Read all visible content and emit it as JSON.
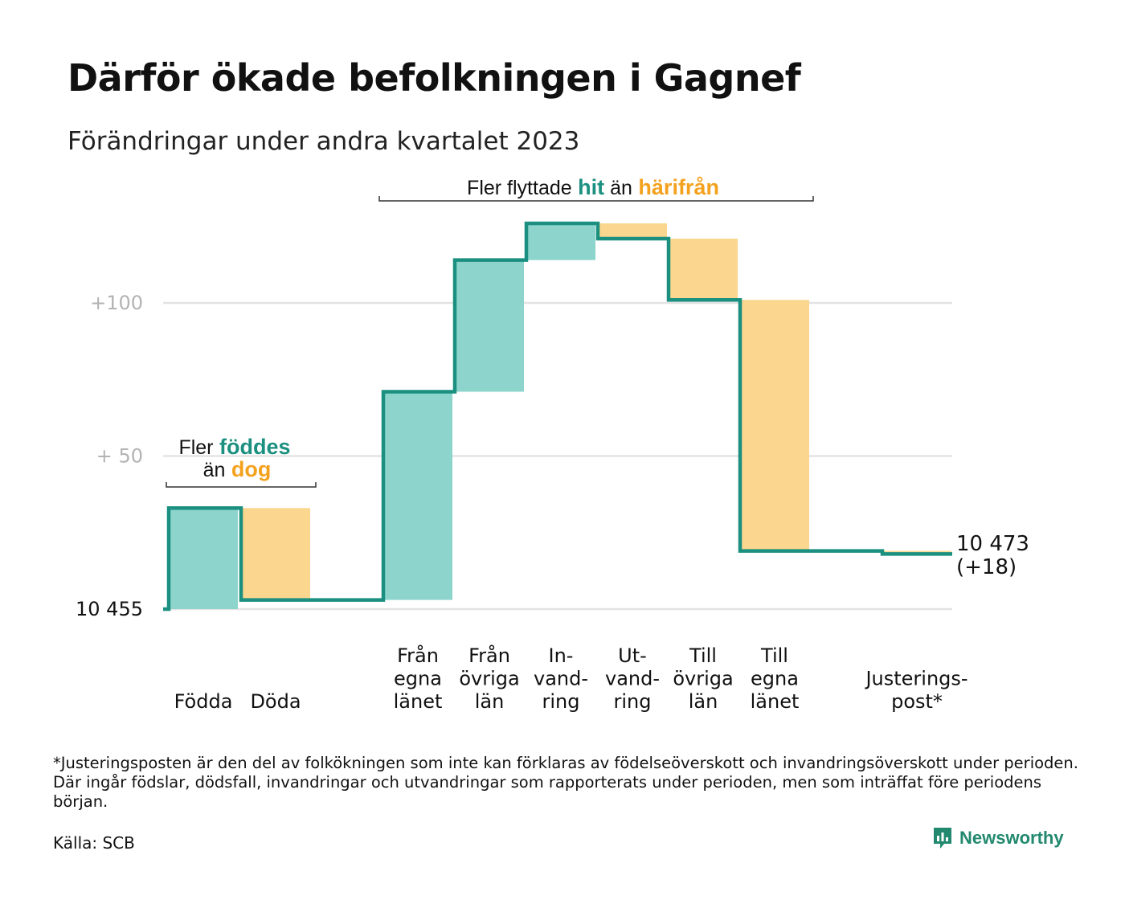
{
  "header": {
    "title": "Därför ökade befolkningen i Gagnef",
    "subtitle": "Förändringar under andra kvartalet 2023"
  },
  "chart_data": {
    "type": "bar",
    "subtype": "waterfall",
    "start_value": 10455,
    "end_value": 10473,
    "end_label": [
      "10 473",
      "(+18)"
    ],
    "y_ticks": [
      {
        "value": 10455,
        "label": "10  455"
      },
      {
        "value": 10505,
        "label": "+  50"
      },
      {
        "value": 10555,
        "label": "+100"
      }
    ],
    "ylim": [
      10455,
      10583
    ],
    "grid": true,
    "steps": [
      {
        "category": "Födda",
        "label_lines": [
          "Födda"
        ],
        "delta": 33,
        "kind": "in"
      },
      {
        "category": "Döda",
        "label_lines": [
          "Döda"
        ],
        "delta": -30,
        "kind": "out"
      },
      {
        "category": "Från egna länet",
        "label_lines": [
          "Från",
          "egna",
          "länet"
        ],
        "delta": 68,
        "kind": "in"
      },
      {
        "category": "Från övriga län",
        "label_lines": [
          "Från",
          "övriga",
          "län"
        ],
        "delta": 43,
        "kind": "in"
      },
      {
        "category": "Invandring",
        "label_lines": [
          "In-",
          "vand-",
          "ring"
        ],
        "delta": 12,
        "kind": "in"
      },
      {
        "category": "Utvandring",
        "label_lines": [
          "Ut-",
          "vand-",
          "ring"
        ],
        "delta": -5,
        "kind": "out"
      },
      {
        "category": "Till övriga län",
        "label_lines": [
          "Till",
          "övriga",
          "län"
        ],
        "delta": -20,
        "kind": "out"
      },
      {
        "category": "Till egna länet",
        "label_lines": [
          "Till",
          "egna",
          "länet"
        ],
        "delta": -82,
        "kind": "out"
      },
      {
        "category": "Justeringspost*",
        "label_lines": [
          "Justerings-",
          "post*"
        ],
        "delta": -1,
        "kind": "out"
      }
    ],
    "annotations": {
      "births": {
        "prefix": "Fler",
        "in_word": "föddes",
        "middle": "än",
        "out_word": "dog"
      },
      "migration": {
        "prefix": "Fler flyttade",
        "in_word": "hit",
        "middle": "än",
        "out_word": "härifrån"
      }
    },
    "colors": {
      "in_fill": "#8dd5cc",
      "out_fill": "#fbd68e",
      "line": "#1b9080",
      "in_text": "#1b9080",
      "out_text": "#f4a21e",
      "grid": "#e3e3e3",
      "tick_text": "#b3b3b3"
    }
  },
  "footer": {
    "footnote": "*Justeringsposten är den del av folkökningen som inte kan förklaras av födelseöverskott och invandringsöverskott under perioden. Där ingår födslar, dödsfall, invandringar och utvandringar som rapporterats under perioden, men som inträffat före periodens början.",
    "source": "Källa: SCB",
    "brand": "Newsworthy"
  }
}
